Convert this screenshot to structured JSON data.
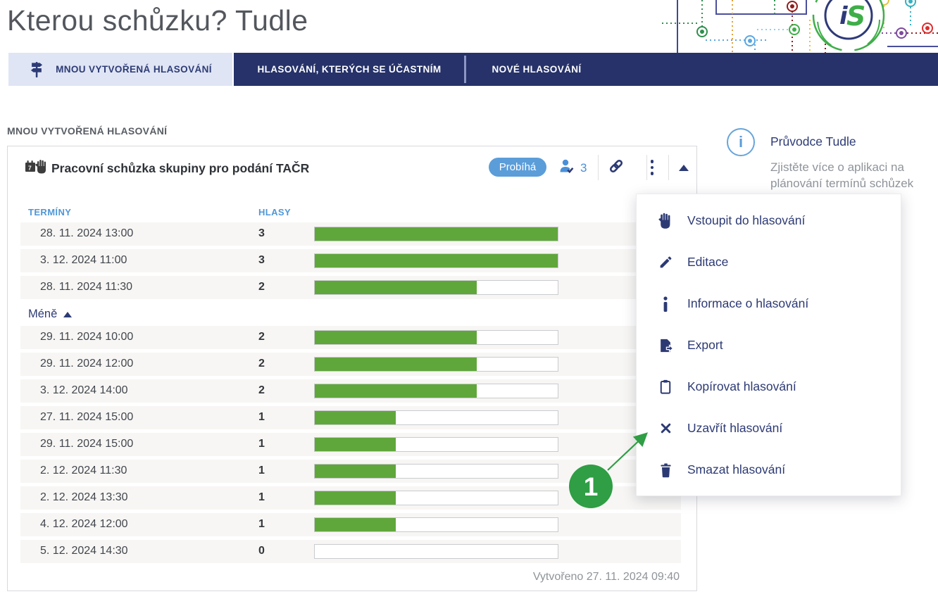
{
  "page": {
    "title": "Kterou schůzku? Tudle"
  },
  "logo": {
    "text_i": "i",
    "text_s": "S"
  },
  "tabs": [
    {
      "label": "MNOU VYTVOŘENÁ HLASOVÁNÍ",
      "icon": "signpost-icon",
      "active": true
    },
    {
      "label": "HLASOVÁNÍ, KTERÝCH SE ÚČASTNÍM",
      "active": false
    },
    {
      "label": "NOVÉ HLASOVÁNÍ",
      "active": false
    }
  ],
  "section": {
    "label": "MNOU VYTVOŘENÁ HLASOVÁNÍ"
  },
  "poll": {
    "icon": "calendar-hand-icon",
    "title": "Pracovní schůzka skupiny pro podání TAČR",
    "status_badge": "Probíhá",
    "participants_count": "3",
    "columns": {
      "dates": "TERMÍNY",
      "votes": "HLASY"
    },
    "less_label": "Méně",
    "max_votes": 3,
    "rows_top": [
      {
        "date": "28. 11. 2024 13:00",
        "votes": 3
      },
      {
        "date": "3. 12. 2024 11:00",
        "votes": 3
      },
      {
        "date": "28. 11. 2024 11:30",
        "votes": 2
      }
    ],
    "rows_more": [
      {
        "date": "29. 11. 2024 10:00",
        "votes": 2
      },
      {
        "date": "29. 11. 2024 12:00",
        "votes": 2
      },
      {
        "date": "3. 12. 2024 14:00",
        "votes": 2
      },
      {
        "date": "27. 11. 2024 15:00",
        "votes": 1
      },
      {
        "date": "29. 11. 2024 15:00",
        "votes": 1
      },
      {
        "date": "2. 12. 2024 11:30",
        "votes": 1
      },
      {
        "date": "2. 12. 2024 13:30",
        "votes": 1
      },
      {
        "date": "4. 12. 2024 12:00",
        "votes": 1
      },
      {
        "date": "5. 12. 2024 14:30",
        "votes": 0
      }
    ],
    "created_label": "Vytvořeno 27. 11. 2024 09:40"
  },
  "context_menu": {
    "items": [
      {
        "label": "Vstoupit do hlasování",
        "icon": "hand-icon"
      },
      {
        "label": "Editace",
        "icon": "pencil-icon"
      },
      {
        "label": "Informace o hlasování",
        "icon": "info-icon"
      },
      {
        "label": "Export",
        "icon": "export-icon"
      },
      {
        "label": "Kopírovat hlasování",
        "icon": "copy-icon"
      },
      {
        "label": "Uzavřít hlasování",
        "icon": "close-icon"
      },
      {
        "label": "Smazat hlasování",
        "icon": "trash-icon"
      }
    ]
  },
  "guide": {
    "icon": "info-circle-icon",
    "title": "Průvodce Tudle",
    "description_line1": "Zjistěte více o aplikaci na",
    "description_line2": "plánování termínů schůzek"
  },
  "annotation": {
    "label": "1"
  },
  "colors": {
    "navy": "#263269",
    "tab_active_bg": "#dfe5f4",
    "table_header_blue": "#4f97d7",
    "badge_blue": "#5b9dd9",
    "bar_green": "#5fa73a",
    "annotation_green": "#2f9e44"
  }
}
